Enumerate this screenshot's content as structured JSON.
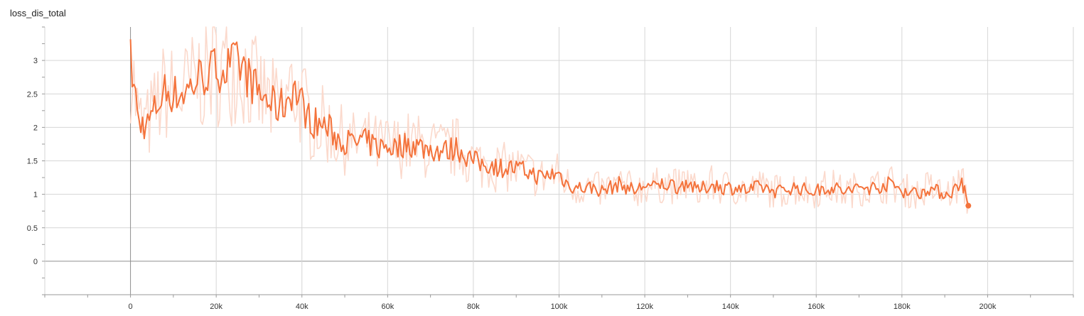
{
  "chart_data": {
    "type": "line",
    "title": "loss_dis_total",
    "xlabel": "",
    "ylabel": "",
    "xlim": [
      -20000,
      220000
    ],
    "ylim": [
      -0.5,
      3.5
    ],
    "x_ticks": [
      0,
      20000,
      40000,
      60000,
      80000,
      100000,
      120000,
      140000,
      160000,
      180000,
      200000
    ],
    "x_tick_labels": [
      "0",
      "20k",
      "40k",
      "60k",
      "80k",
      "100k",
      "120k",
      "140k",
      "160k",
      "180k",
      "200k"
    ],
    "y_ticks": [
      0,
      0.5,
      1,
      1.5,
      2,
      2.5,
      3
    ],
    "y_tick_labels": [
      "0",
      "0.5",
      "1",
      "1.5",
      "2",
      "2.5",
      "3"
    ],
    "grid": true,
    "legend": "none",
    "series": [
      {
        "x": [
          0,
          2000,
          4000,
          6000,
          8000,
          10000,
          12000,
          14000,
          16000,
          18000,
          20000,
          22000,
          24000,
          26000,
          28000,
          30000,
          32000,
          34000,
          36000,
          38000,
          40000,
          42000,
          44000,
          46000,
          48000,
          50000,
          52000,
          54000,
          56000,
          58000,
          60000,
          62000,
          64000,
          66000,
          68000,
          70000,
          72000,
          74000,
          76000,
          78000,
          80000,
          82000,
          84000,
          86000,
          88000,
          90000,
          92000,
          94000,
          96000,
          98000,
          100000,
          102000,
          104000,
          106000,
          108000,
          110000,
          112000,
          114000,
          116000,
          118000,
          120000,
          122000,
          124000,
          126000,
          128000,
          130000,
          132000,
          134000,
          136000,
          138000,
          140000,
          142000,
          144000,
          146000,
          148000,
          150000,
          152000,
          154000,
          156000,
          158000,
          160000,
          162000,
          164000,
          166000,
          168000,
          170000,
          172000,
          174000,
          176000,
          178000,
          180000,
          182000,
          184000,
          186000,
          188000,
          190000,
          192000,
          194000,
          195500
        ],
        "y": [
          3.0,
          2.05,
          2.05,
          2.3,
          2.55,
          2.5,
          2.5,
          2.6,
          2.75,
          2.8,
          2.9,
          2.85,
          2.95,
          2.9,
          2.7,
          2.5,
          2.4,
          2.3,
          2.35,
          2.6,
          2.35,
          2.1,
          2.05,
          2.0,
          1.85,
          1.8,
          1.75,
          1.8,
          1.75,
          1.7,
          1.72,
          1.7,
          1.75,
          1.75,
          1.7,
          1.68,
          1.65,
          1.65,
          1.7,
          1.6,
          1.5,
          1.45,
          1.45,
          1.4,
          1.4,
          1.38,
          1.35,
          1.3,
          1.25,
          1.3,
          1.3,
          1.15,
          1.1,
          1.1,
          1.1,
          1.05,
          1.1,
          1.15,
          1.1,
          1.05,
          1.15,
          1.1,
          1.15,
          1.15,
          1.1,
          1.2,
          1.05,
          1.1,
          1.15,
          1.1,
          1.1,
          1.1,
          1.05,
          1.1,
          1.1,
          1.05,
          1.05,
          1.1,
          1.1,
          1.05,
          1.05,
          1.1,
          1.1,
          1.05,
          1.05,
          1.1,
          1.1,
          1.1,
          1.15,
          1.15,
          1.05,
          1.05,
          1.0,
          1.1,
          1.05,
          1.0,
          1.05,
          1.2,
          0.83
        ]
      }
    ]
  },
  "colors": {
    "line": "#f4733c",
    "raw": "#fbd9cc",
    "grid": "#d6d6d6",
    "axis": "#9a9a9a",
    "text": "#333333"
  }
}
